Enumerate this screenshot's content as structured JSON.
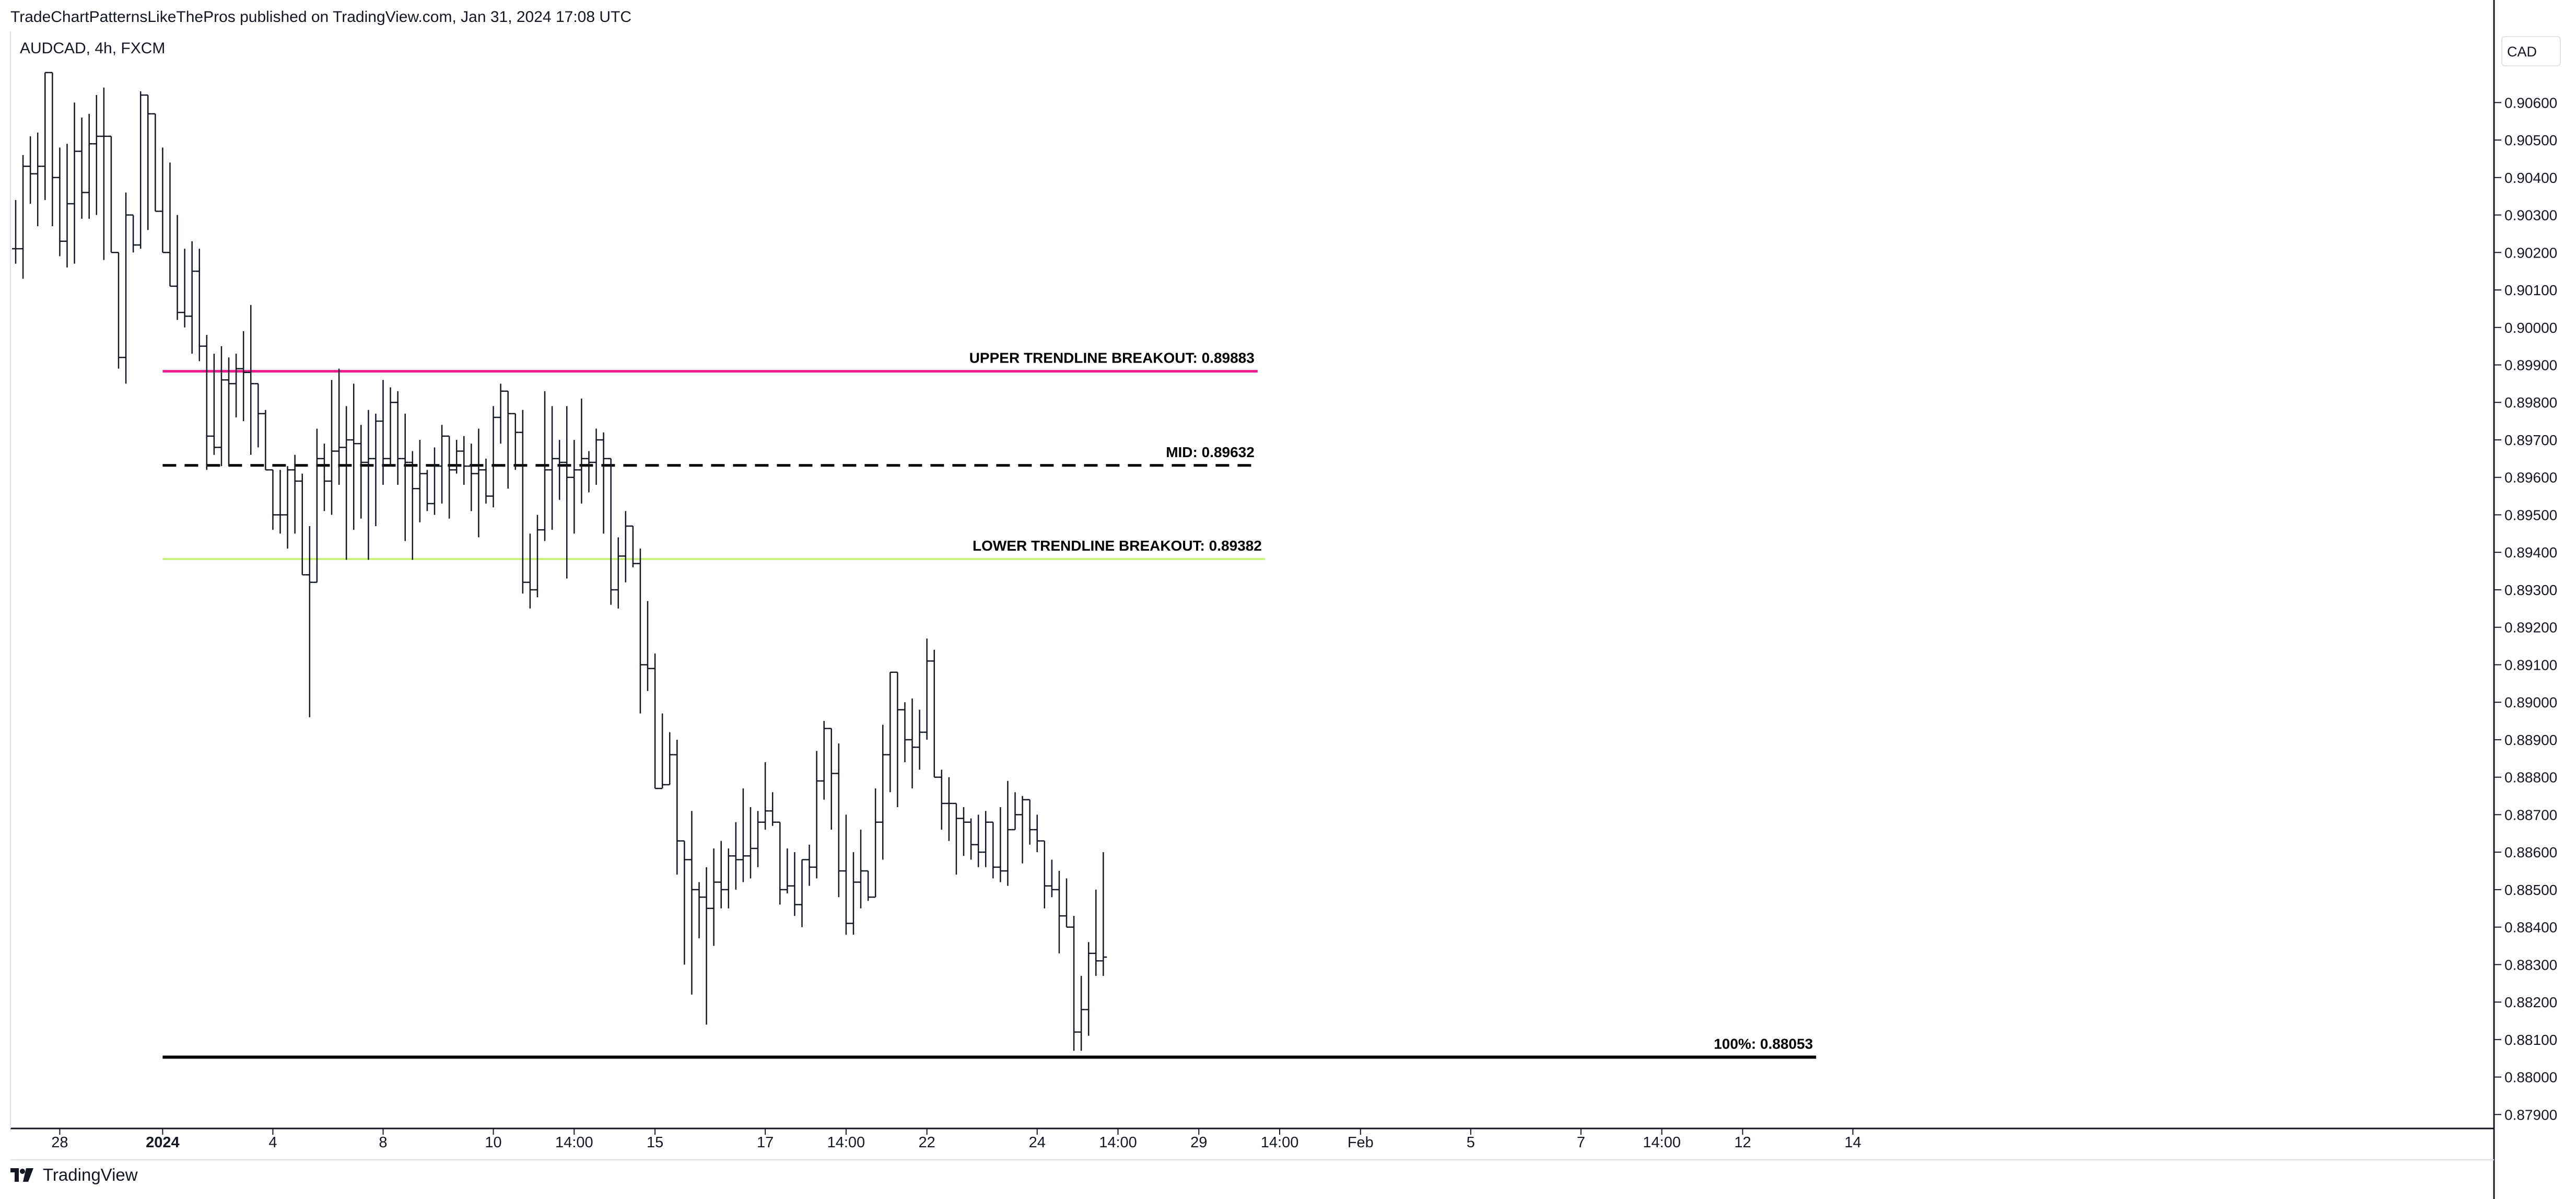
{
  "header": {
    "published": "TradeChartPatternsLikeThePros published on TradingView.com, Jan 31, 2024 17:08 UTC",
    "symbol": "AUDCAD, 4h, FXCM",
    "currency": "CAD"
  },
  "branding": {
    "name": "TradingView",
    "icon": "tradingview-logo-icon"
  },
  "colors": {
    "upper": "#e91e8c",
    "mid": "#000000",
    "lower": "#c8f07a",
    "target": "#000000",
    "bars": "#131722"
  },
  "chart_data": {
    "type": "ohlc",
    "title": "AUDCAD, 4h, FXCM",
    "ylim": [
      0.8786,
      0.9079
    ],
    "y_ticks": [
      "0.90600",
      "0.90500",
      "0.90400",
      "0.90300",
      "0.90200",
      "0.90100",
      "0.90000",
      "0.89900",
      "0.89800",
      "0.89700",
      "0.89600",
      "0.89500",
      "0.89400",
      "0.89300",
      "0.89200",
      "0.89100",
      "0.89000",
      "0.88900",
      "0.88800",
      "0.88700",
      "0.88600",
      "0.88500",
      "0.88400",
      "0.88300",
      "0.88200",
      "0.88100",
      "0.88000",
      "0.87900"
    ],
    "x_ticks": [
      {
        "label": "28",
        "bar": 6
      },
      {
        "label": "2024",
        "bar": 20,
        "bold": true
      },
      {
        "label": "4",
        "bar": 35
      },
      {
        "label": "8",
        "bar": 50
      },
      {
        "label": "10",
        "bar": 65
      },
      {
        "label": "14:00",
        "bar": 76
      },
      {
        "label": "15",
        "bar": 87
      },
      {
        "label": "17",
        "bar": 102
      },
      {
        "label": "14:00",
        "bar": 113
      },
      {
        "label": "22",
        "bar": 124
      },
      {
        "label": "24",
        "bar": 139
      },
      {
        "label": "14:00",
        "bar": 150
      },
      {
        "label": "29",
        "bar": 161
      },
      {
        "label": "14:00",
        "bar": 172
      },
      {
        "label": "Feb",
        "bar": 183
      },
      {
        "label": "5",
        "bar": 198
      },
      {
        "label": "7",
        "bar": 213
      },
      {
        "label": "14:00",
        "bar": 224
      },
      {
        "label": "12",
        "bar": 235
      },
      {
        "label": "14",
        "bar": 250
      }
    ],
    "levels": [
      {
        "name": "upper",
        "label": "UPPER TRENDLINE BREAKOUT: 0.89883",
        "value": 0.89883,
        "style": "solid",
        "from_bar": 20,
        "to_bar": 169
      },
      {
        "name": "mid",
        "label": "MID: 0.89632",
        "value": 0.89632,
        "style": "dashed",
        "from_bar": 20,
        "to_bar": 169
      },
      {
        "name": "lower",
        "label": "LOWER TRENDLINE BREAKOUT: 0.89382",
        "value": 0.89382,
        "style": "solid",
        "from_bar": 20,
        "to_bar": 170
      },
      {
        "name": "target",
        "label": "100%: 0.88053",
        "value": 0.88053,
        "style": "solid",
        "from_bar": 20,
        "to_bar": 245
      }
    ],
    "bars": [
      [
        0.9021,
        0.9034,
        0.9017,
        0.9021
      ],
      [
        0.9021,
        0.9046,
        0.9013,
        0.9043
      ],
      [
        0.9043,
        0.9051,
        0.9033,
        0.9041
      ],
      [
        0.9041,
        0.9052,
        0.9027,
        0.9043
      ],
      [
        0.9043,
        0.9068,
        0.9034,
        0.9068
      ],
      [
        0.9068,
        0.9067,
        0.9027,
        0.904
      ],
      [
        0.904,
        0.9048,
        0.9019,
        0.9023
      ],
      [
        0.9023,
        0.9049,
        0.9016,
        0.9033
      ],
      [
        0.9033,
        0.906,
        0.9017,
        0.9047
      ],
      [
        0.9047,
        0.9056,
        0.9029,
        0.9036
      ],
      [
        0.9036,
        0.9057,
        0.9029,
        0.9049
      ],
      [
        0.9049,
        0.9062,
        0.903,
        0.9051
      ],
      [
        0.9051,
        0.9064,
        0.9018,
        0.9051
      ],
      [
        0.9051,
        0.9035,
        0.9021,
        0.902
      ],
      [
        0.902,
        0.9018,
        0.8989,
        0.8992
      ],
      [
        0.8992,
        0.9036,
        0.8985,
        0.903
      ],
      [
        0.903,
        0.903,
        0.902,
        0.9022
      ],
      [
        0.9022,
        0.9063,
        0.9021,
        0.9062
      ],
      [
        0.9062,
        0.9059,
        0.9026,
        0.9057
      ],
      [
        0.9057,
        0.9049,
        0.9031,
        0.9031
      ],
      [
        0.9031,
        0.9048,
        0.902,
        0.902
      ],
      [
        0.902,
        0.9044,
        0.9011,
        0.9011
      ],
      [
        0.9011,
        0.903,
        0.9002,
        0.9004
      ],
      [
        0.9004,
        0.9021,
        0.9,
        0.9003
      ],
      [
        0.9003,
        0.9023,
        0.8993,
        0.9015
      ],
      [
        0.9015,
        0.9021,
        0.8991,
        0.8995
      ],
      [
        0.8995,
        0.8998,
        0.8962,
        0.8971
      ],
      [
        0.8971,
        0.8993,
        0.8966,
        0.8968
      ],
      [
        0.8968,
        0.8995,
        0.8963,
        0.8986
      ],
      [
        0.8986,
        0.8992,
        0.8963,
        0.8985
      ],
      [
        0.8985,
        0.8993,
        0.8976,
        0.8989
      ],
      [
        0.8989,
        0.8999,
        0.8975,
        0.8988
      ],
      [
        0.8988,
        0.9006,
        0.8966,
        0.8985
      ],
      [
        0.8985,
        0.8984,
        0.8968,
        0.8977
      ],
      [
        0.8977,
        0.8978,
        0.8962,
        0.8962
      ],
      [
        0.8962,
        0.8959,
        0.8946,
        0.895
      ],
      [
        0.895,
        0.8962,
        0.8945,
        0.895
      ],
      [
        0.895,
        0.8963,
        0.8941,
        0.8962
      ],
      [
        0.8962,
        0.8966,
        0.8945,
        0.8959
      ],
      [
        0.8959,
        0.8961,
        0.8942,
        0.8934
      ],
      [
        0.8934,
        0.8947,
        0.8896,
        0.8932
      ],
      [
        0.8932,
        0.8973,
        0.8935,
        0.8965
      ],
      [
        0.8965,
        0.8969,
        0.8951,
        0.8959
      ],
      [
        0.8959,
        0.8986,
        0.895,
        0.8967
      ],
      [
        0.8967,
        0.8989,
        0.8958,
        0.8968
      ],
      [
        0.8968,
        0.8979,
        0.8938,
        0.897
      ],
      [
        0.897,
        0.8985,
        0.8946,
        0.8969
      ],
      [
        0.8969,
        0.8974,
        0.8949,
        0.8964
      ],
      [
        0.8964,
        0.8978,
        0.8938,
        0.8965
      ],
      [
        0.8965,
        0.8977,
        0.8947,
        0.8975
      ],
      [
        0.8975,
        0.8986,
        0.8958,
        0.8965
      ],
      [
        0.8965,
        0.8984,
        0.8963,
        0.898
      ],
      [
        0.898,
        0.8983,
        0.8958,
        0.8965
      ],
      [
        0.8965,
        0.8977,
        0.8943,
        0.8964
      ],
      [
        0.8964,
        0.8967,
        0.8938,
        0.8957
      ],
      [
        0.8957,
        0.897,
        0.8948,
        0.8961
      ],
      [
        0.8961,
        0.8962,
        0.8951,
        0.8953
      ],
      [
        0.8953,
        0.8968,
        0.895,
        0.8963
      ],
      [
        0.8963,
        0.8974,
        0.8953,
        0.8971
      ],
      [
        0.8971,
        0.897,
        0.8949,
        0.8962
      ],
      [
        0.8962,
        0.897,
        0.8961,
        0.8967
      ],
      [
        0.8967,
        0.8971,
        0.8958,
        0.8963
      ],
      [
        0.8963,
        0.8969,
        0.8951,
        0.8961
      ],
      [
        0.8961,
        0.8973,
        0.8944,
        0.8962
      ],
      [
        0.8962,
        0.8965,
        0.8953,
        0.8955
      ],
      [
        0.8955,
        0.8979,
        0.8952,
        0.8976
      ],
      [
        0.8976,
        0.8985,
        0.8969,
        0.8983
      ],
      [
        0.8983,
        0.898,
        0.8957,
        0.8977
      ],
      [
        0.8977,
        0.8976,
        0.8962,
        0.8972
      ],
      [
        0.8972,
        0.8978,
        0.8929,
        0.8932
      ],
      [
        0.8932,
        0.8945,
        0.8925,
        0.893
      ],
      [
        0.893,
        0.895,
        0.8928,
        0.8946
      ],
      [
        0.8946,
        0.8983,
        0.8943,
        0.8962
      ],
      [
        0.8962,
        0.8979,
        0.8946,
        0.8965
      ],
      [
        0.8965,
        0.897,
        0.8954,
        0.8964
      ],
      [
        0.8964,
        0.8979,
        0.8933,
        0.896
      ],
      [
        0.896,
        0.897,
        0.8945,
        0.8962
      ],
      [
        0.8962,
        0.8981,
        0.8953,
        0.8965
      ],
      [
        0.8965,
        0.8967,
        0.8956,
        0.8964
      ],
      [
        0.8964,
        0.8973,
        0.8958,
        0.897
      ],
      [
        0.897,
        0.8972,
        0.8945,
        0.8965
      ],
      [
        0.8965,
        0.8956,
        0.8926,
        0.893
      ],
      [
        0.893,
        0.8944,
        0.8925,
        0.8939
      ],
      [
        0.8939,
        0.8951,
        0.8932,
        0.8947
      ],
      [
        0.8947,
        0.8946,
        0.8936,
        0.8937
      ],
      [
        0.8937,
        0.8941,
        0.8897,
        0.891
      ],
      [
        0.891,
        0.8927,
        0.8903,
        0.8909
      ],
      [
        0.8909,
        0.8913,
        0.8877,
        0.8877
      ],
      [
        0.8877,
        0.8897,
        0.8877,
        0.8878
      ],
      [
        0.8878,
        0.8892,
        0.8883,
        0.8886
      ],
      [
        0.8886,
        0.889,
        0.8854,
        0.8863
      ],
      [
        0.8863,
        0.8863,
        0.883,
        0.8858
      ],
      [
        0.8858,
        0.8871,
        0.8822,
        0.885
      ],
      [
        0.885,
        0.8852,
        0.8837,
        0.8848
      ],
      [
        0.8848,
        0.8856,
        0.8814,
        0.8845
      ],
      [
        0.8845,
        0.8861,
        0.8835,
        0.8852
      ],
      [
        0.8852,
        0.8863,
        0.8845,
        0.885
      ],
      [
        0.885,
        0.8861,
        0.8845,
        0.8859
      ],
      [
        0.8859,
        0.8868,
        0.885,
        0.8858
      ],
      [
        0.8858,
        0.8877,
        0.8852,
        0.8859
      ],
      [
        0.8859,
        0.8872,
        0.8853,
        0.8861
      ],
      [
        0.8861,
        0.8871,
        0.8856,
        0.8868
      ],
      [
        0.8868,
        0.8884,
        0.8866,
        0.8871
      ],
      [
        0.8871,
        0.8876,
        0.8867,
        0.8868
      ],
      [
        0.8868,
        0.8864,
        0.8846,
        0.885
      ],
      [
        0.885,
        0.8861,
        0.8849,
        0.8851
      ],
      [
        0.8851,
        0.886,
        0.8843,
        0.8846
      ],
      [
        0.8846,
        0.8858,
        0.884,
        0.8858
      ],
      [
        0.8858,
        0.8862,
        0.8851,
        0.8856
      ],
      [
        0.8856,
        0.8887,
        0.8853,
        0.8879
      ],
      [
        0.8879,
        0.8895,
        0.8874,
        0.8893
      ],
      [
        0.8893,
        0.889,
        0.8866,
        0.8881
      ],
      [
        0.8881,
        0.8889,
        0.8848,
        0.8855
      ],
      [
        0.8855,
        0.887,
        0.8838,
        0.8841
      ],
      [
        0.8841,
        0.886,
        0.8838,
        0.8852
      ],
      [
        0.8852,
        0.8866,
        0.8845,
        0.8855
      ],
      [
        0.8855,
        0.8852,
        0.8847,
        0.8848
      ],
      [
        0.8848,
        0.8877,
        0.8849,
        0.8868
      ],
      [
        0.8868,
        0.8894,
        0.8858,
        0.8886
      ],
      [
        0.8886,
        0.8903,
        0.8876,
        0.8908
      ],
      [
        0.8908,
        0.8901,
        0.8872,
        0.8898
      ],
      [
        0.8898,
        0.89,
        0.8884,
        0.889
      ],
      [
        0.889,
        0.8901,
        0.8877,
        0.8888
      ],
      [
        0.8888,
        0.8898,
        0.8882,
        0.8892
      ],
      [
        0.8892,
        0.8917,
        0.889,
        0.8911
      ],
      [
        0.8911,
        0.8914,
        0.888,
        0.888
      ],
      [
        0.888,
        0.8882,
        0.8866,
        0.8873
      ],
      [
        0.8873,
        0.888,
        0.8863,
        0.8873
      ],
      [
        0.8873,
        0.8872,
        0.8854,
        0.8869
      ],
      [
        0.8869,
        0.8872,
        0.8859,
        0.8868
      ],
      [
        0.8868,
        0.8869,
        0.8858,
        0.8862
      ],
      [
        0.8862,
        0.887,
        0.8856,
        0.886
      ],
      [
        0.886,
        0.8871,
        0.8856,
        0.8868
      ],
      [
        0.8868,
        0.8865,
        0.8853,
        0.8856
      ],
      [
        0.8856,
        0.8872,
        0.8852,
        0.8855
      ],
      [
        0.8855,
        0.8879,
        0.8851,
        0.8866
      ],
      [
        0.8866,
        0.8876,
        0.8867,
        0.887
      ],
      [
        0.887,
        0.8875,
        0.8857,
        0.8874
      ],
      [
        0.8874,
        0.8873,
        0.8862,
        0.8866
      ],
      [
        0.8866,
        0.887,
        0.886,
        0.8863
      ],
      [
        0.8863,
        0.8863,
        0.8845,
        0.8851
      ],
      [
        0.8851,
        0.8858,
        0.8848,
        0.885
      ],
      [
        0.885,
        0.8855,
        0.8833,
        0.8843
      ],
      [
        0.8843,
        0.8853,
        0.884,
        0.884
      ],
      [
        0.884,
        0.8843,
        0.8807,
        0.8812
      ],
      [
        0.8812,
        0.8827,
        0.8807,
        0.8818
      ],
      [
        0.8818,
        0.8836,
        0.8811,
        0.8833
      ],
      [
        0.8833,
        0.885,
        0.8827,
        0.8831
      ],
      [
        0.8831,
        0.886,
        0.8827,
        0.8832
      ]
    ]
  }
}
